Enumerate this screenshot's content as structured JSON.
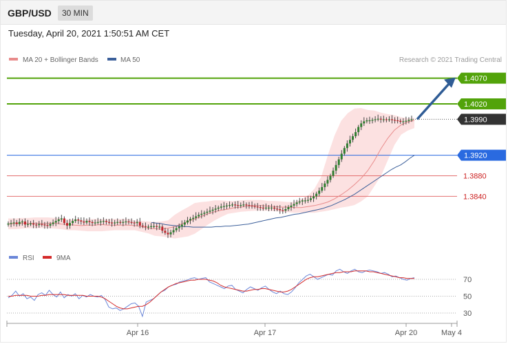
{
  "header": {
    "pair": "GBP/USD",
    "timeframe": "30 MIN",
    "datetime": "Tuesday, April 20, 2021 1:50:51 AM CET"
  },
  "legend": {
    "ma20": "MA 20 + Bollinger Bands",
    "ma50": "MA 50",
    "copyright": "Research © 2021 Trading Central",
    "rsi": "RSI",
    "ma9": "9MA"
  },
  "colors": {
    "bullish": "#2f7d2f",
    "bearish": "#c0262d",
    "resistance": "#52a30a",
    "support": "#e36f6f",
    "ma50": "#3b5f9a",
    "ma20": "#e88b8b",
    "bollinger_fill": "#fbdcdc",
    "pivot": "#2a6ae0",
    "current": "#333333",
    "arrow": "#2f5c95",
    "rsi": "#6a86d8",
    "rsi_ma": "#d42a2a"
  },
  "chart_data": [
    {
      "type": "candlestick",
      "x_labels": [
        "Apr 16",
        "Apr 17",
        "Apr 20",
        "May 4"
      ],
      "ylim": [
        1.374,
        1.4095
      ],
      "levels": [
        {
          "value": 1.407,
          "label": "1.4070",
          "kind": "resistance"
        },
        {
          "value": 1.402,
          "label": "1.4020",
          "kind": "resistance"
        },
        {
          "value": 1.399,
          "label": "1.3990",
          "kind": "current"
        },
        {
          "value": 1.392,
          "label": "1.3920",
          "kind": "pivot"
        },
        {
          "value": 1.388,
          "label": "1.3880",
          "kind": "support"
        },
        {
          "value": 1.384,
          "label": "1.3840",
          "kind": "support"
        }
      ],
      "price_close": [
        1.3787,
        1.3788,
        1.3789,
        1.3786,
        1.379,
        1.3791,
        1.3785,
        1.3786,
        1.3787,
        1.3785,
        1.3784,
        1.3786,
        1.3785,
        1.3784,
        1.3783,
        1.3786,
        1.3789,
        1.3792,
        1.3795,
        1.3797,
        1.3788,
        1.3783,
        1.3788,
        1.3792,
        1.3795,
        1.3793,
        1.3791,
        1.3789,
        1.3792,
        1.379,
        1.3788,
        1.3789,
        1.379,
        1.3791,
        1.3792,
        1.379,
        1.3789,
        1.3788,
        1.3789,
        1.379,
        1.3789,
        1.379,
        1.3791,
        1.379,
        1.3789,
        1.3788,
        1.379,
        1.3783,
        1.3782,
        1.3781,
        1.3781,
        1.3782,
        1.3782,
        1.3781,
        1.3781,
        1.3773,
        1.3769,
        1.3766,
        1.377,
        1.3774,
        1.3778,
        1.3781,
        1.3785,
        1.3789,
        1.3793,
        1.3796,
        1.3798,
        1.3801,
        1.3804,
        1.3806,
        1.3808,
        1.381,
        1.3812,
        1.3814,
        1.3816,
        1.3818,
        1.382,
        1.3821,
        1.3822,
        1.3823,
        1.3824,
        1.3823,
        1.3822,
        1.3823,
        1.3824,
        1.3823,
        1.3822,
        1.3821,
        1.382,
        1.3819,
        1.3818,
        1.3817,
        1.3818,
        1.3818,
        1.3818,
        1.3816,
        1.3815,
        1.3813,
        1.3812,
        1.3815,
        1.3819,
        1.3822,
        1.3825,
        1.3828,
        1.383,
        1.3832,
        1.3832,
        1.3833,
        1.3836,
        1.384,
        1.3845,
        1.3851,
        1.3858,
        1.3865,
        1.3872,
        1.388,
        1.389,
        1.3901,
        1.3912,
        1.3923,
        1.3934,
        1.3943,
        1.395,
        1.3957,
        1.3965,
        1.3975,
        1.3982,
        1.3986,
        1.3988,
        1.3988,
        1.3989,
        1.399,
        1.3991,
        1.399,
        1.399,
        1.3989,
        1.399,
        1.3989,
        1.3988,
        1.3987,
        1.3985,
        1.3986,
        1.3987,
        1.3989,
        1.399
      ],
      "ma50": [
        1.3789,
        1.3788,
        1.3787,
        1.3785,
        1.3784,
        1.3783,
        1.3782,
        1.3781,
        1.3781,
        1.378,
        1.378,
        1.378,
        1.378,
        1.378,
        1.3781,
        1.3781,
        1.3782,
        1.3782,
        1.3783,
        1.3784,
        1.3785,
        1.3786,
        1.3788,
        1.379,
        1.3792,
        1.3794,
        1.3796,
        1.3798,
        1.3799,
        1.3801,
        1.3803,
        1.3805,
        1.3806,
        1.3808,
        1.381,
        1.3812,
        1.3814,
        1.3816,
        1.3819,
        1.3822,
        1.3826,
        1.383,
        1.3834,
        1.3839,
        1.3844,
        1.385,
        1.3856,
        1.3862,
        1.3868,
        1.3874,
        1.388,
        1.3886,
        1.3892,
        1.3897,
        1.3901,
        1.3907,
        1.3914,
        1.392
      ],
      "ma20": [
        1.3786,
        1.3787,
        1.3788,
        1.3787,
        1.3788,
        1.3787,
        1.3787,
        1.3788,
        1.3786,
        1.3785,
        1.3784,
        1.3783,
        1.3784,
        1.3784,
        1.3785,
        1.3784,
        1.3784,
        1.3784,
        1.3784,
        1.3783,
        1.3781,
        1.3778,
        1.3777,
        1.3776,
        1.3778,
        1.3781,
        1.3786,
        1.3791,
        1.3796,
        1.3801,
        1.3806,
        1.381,
        1.3813,
        1.3815,
        1.3818,
        1.3819,
        1.3821,
        1.3822,
        1.3822,
        1.3821,
        1.382,
        1.3819,
        1.3819,
        1.3818,
        1.3818,
        1.382,
        1.3822,
        1.3825,
        1.3829,
        1.3835,
        1.3843,
        1.3852,
        1.3863,
        1.3875,
        1.389,
        1.391,
        1.3933,
        1.3953,
        1.3969,
        1.3979,
        1.3985,
        1.3988
      ],
      "bollinger_upper": [
        1.3797,
        1.3797,
        1.3798,
        1.3798,
        1.3799,
        1.3799,
        1.3799,
        1.3798,
        1.3797,
        1.3795,
        1.3795,
        1.3794,
        1.3795,
        1.3796,
        1.3795,
        1.3796,
        1.3796,
        1.3796,
        1.3796,
        1.3793,
        1.3792,
        1.3791,
        1.379,
        1.3791,
        1.3793,
        1.3804,
        1.3812,
        1.3819,
        1.3827,
        1.3829,
        1.383,
        1.3832,
        1.3832,
        1.3831,
        1.3831,
        1.3832,
        1.3833,
        1.3833,
        1.3833,
        1.3831,
        1.3831,
        1.383,
        1.3829,
        1.3829,
        1.3834,
        1.3841,
        1.3855,
        1.3878,
        1.392,
        1.3958,
        1.3987,
        1.4002,
        1.4011,
        1.4012,
        1.4008,
        1.4007,
        1.4003,
        1.4,
        1.3998,
        1.3994,
        1.3992,
        1.3993
      ],
      "bollinger_lower": [
        1.3776,
        1.3776,
        1.3777,
        1.3778,
        1.3778,
        1.3778,
        1.3778,
        1.3777,
        1.3776,
        1.3774,
        1.3774,
        1.3773,
        1.3772,
        1.3772,
        1.3772,
        1.3773,
        1.3774,
        1.3774,
        1.3774,
        1.3774,
        1.3771,
        1.3768,
        1.3763,
        1.3762,
        1.376,
        1.3758,
        1.376,
        1.3762,
        1.3767,
        1.3776,
        1.3785,
        1.3793,
        1.38,
        1.3806,
        1.3808,
        1.381,
        1.3811,
        1.3812,
        1.3812,
        1.3812,
        1.3811,
        1.381,
        1.3809,
        1.3808,
        1.3808,
        1.3808,
        1.3808,
        1.381,
        1.3812,
        1.3815,
        1.3818,
        1.382,
        1.3823,
        1.383,
        1.384,
        1.386,
        1.388,
        1.391,
        1.394,
        1.396,
        1.3968,
        1.3973
      ]
    },
    {
      "type": "line",
      "title": "RSI",
      "x_labels": [
        "Apr 16",
        "Apr 17",
        "Apr 20",
        "May 4"
      ],
      "yticks": [
        70,
        50,
        30
      ],
      "series": [
        {
          "name": "RSI",
          "values": [
            48,
            51,
            56,
            50,
            53,
            47,
            49,
            45,
            52,
            54,
            51,
            57,
            52,
            49,
            55,
            48,
            52,
            50,
            53,
            47,
            51,
            49,
            52,
            50,
            49,
            51,
            46,
            37,
            35,
            36,
            33,
            35,
            38,
            41,
            42,
            38,
            26,
            43,
            45,
            47,
            51,
            55,
            57,
            61,
            63,
            64,
            67,
            68,
            69,
            71,
            72,
            70,
            71,
            72,
            67,
            65,
            63,
            61,
            59,
            62,
            63,
            58,
            56,
            54,
            58,
            61,
            59,
            57,
            60,
            62,
            58,
            55,
            53,
            56,
            53,
            52,
            55,
            60,
            66,
            70,
            74,
            76,
            73,
            70,
            72,
            74,
            76,
            75,
            80,
            82,
            79,
            77,
            80,
            82,
            79,
            78,
            80,
            81,
            80,
            79,
            77,
            78,
            76,
            73,
            74,
            72,
            70,
            69,
            71,
            72
          ]
        },
        {
          "name": "9MA",
          "values": [
            50,
            50,
            51,
            51,
            51,
            51,
            50,
            50,
            50,
            51,
            51,
            52,
            52,
            52,
            52,
            52,
            51,
            51,
            51,
            51,
            51,
            50,
            50,
            50,
            50,
            49,
            47,
            44,
            41,
            38,
            36,
            35,
            35,
            36,
            37,
            38,
            38,
            40,
            43,
            47,
            51,
            55,
            58,
            61,
            63,
            65,
            66,
            67,
            68,
            69,
            69,
            70,
            70,
            70,
            69,
            68,
            66,
            63,
            61,
            60,
            59,
            58,
            57,
            56,
            56,
            57,
            58,
            58,
            59,
            59,
            58,
            57,
            56,
            55,
            55,
            56,
            58,
            61,
            64,
            67,
            70,
            72,
            73,
            73,
            74,
            75,
            76,
            77,
            78,
            78,
            79,
            79,
            79,
            80,
            80,
            80,
            80,
            79,
            79,
            78,
            77,
            76,
            75,
            74,
            73,
            72,
            72,
            71,
            71,
            71
          ]
        }
      ]
    }
  ]
}
